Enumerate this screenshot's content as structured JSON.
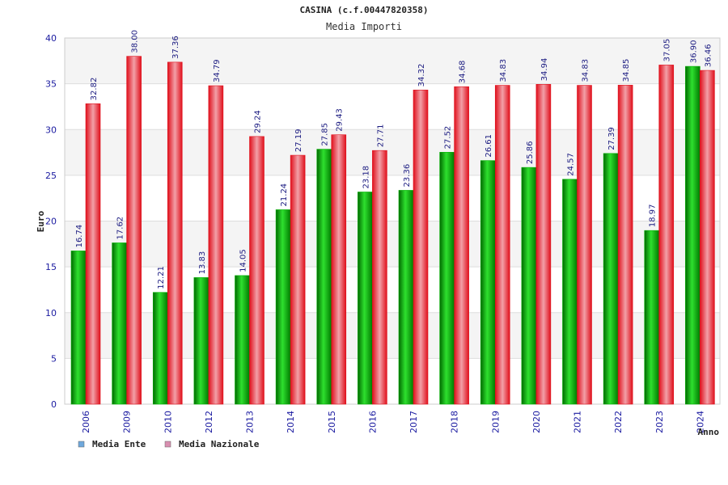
{
  "chart_data": {
    "type": "bar",
    "title": "CASINA (c.f.00447820358)",
    "subtitle": "Media Importi",
    "ylabel": "Euro",
    "xlabel": "Anno",
    "ylim": [
      0,
      40
    ],
    "yticks": [
      0,
      5,
      10,
      15,
      20,
      25,
      30,
      35,
      40
    ],
    "categories": [
      "2006",
      "2009",
      "2010",
      "2012",
      "2013",
      "2014",
      "2015",
      "2016",
      "2017",
      "2018",
      "2019",
      "2020",
      "2021",
      "2022",
      "2023",
      "2024"
    ],
    "series": [
      {
        "name": "Media Ente",
        "color": "#00b000",
        "legend_color": "#6fa8dc",
        "values": [
          16.74,
          17.62,
          12.21,
          13.83,
          14.05,
          21.24,
          27.85,
          23.18,
          23.36,
          27.52,
          26.61,
          25.86,
          24.57,
          27.39,
          18.97,
          36.9
        ],
        "labels": [
          "16.74",
          "17.62",
          "12.21",
          "13.83",
          "14.05",
          "21.24",
          "27.85",
          "23.18",
          "23.36",
          "27.52",
          "26.61",
          "25.86",
          "24.57",
          "27.39",
          "18.97",
          "36.90"
        ]
      },
      {
        "name": "Media Nazionale",
        "color": "#e0101c",
        "legend_color": "#d88fb0",
        "values": [
          32.82,
          38.0,
          37.36,
          34.79,
          29.24,
          27.19,
          29.43,
          27.71,
          34.32,
          34.68,
          34.83,
          34.94,
          34.83,
          34.85,
          37.05,
          36.46
        ],
        "labels": [
          "32.82",
          "38.00",
          "37.36",
          "34.79",
          "29.24",
          "27.19",
          "29.43",
          "27.71",
          "34.32",
          "34.68",
          "34.83",
          "34.94",
          "34.83",
          "34.85",
          "37.05",
          "36.46"
        ]
      }
    ],
    "grid": true,
    "legend": "bottom-left"
  }
}
